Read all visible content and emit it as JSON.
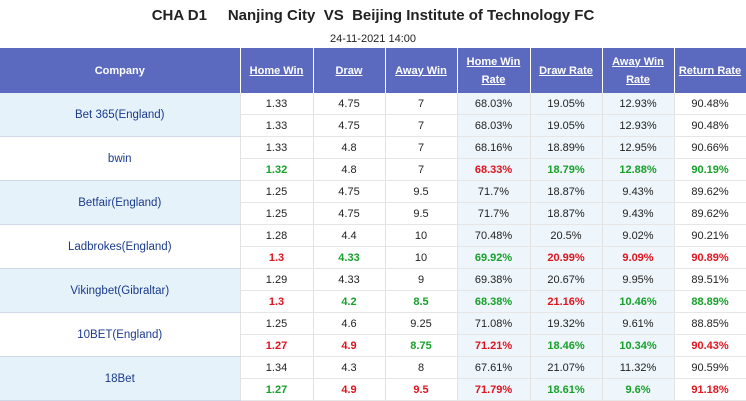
{
  "header": {
    "league": "CHA D1",
    "home_team": "Nanjing City",
    "vs": "VS",
    "away_team": "Beijing Institute of Technology FC",
    "date": "24-11-2021 14:00"
  },
  "columns": [
    "Company",
    "Home Win",
    "Draw",
    "Away Win",
    "Home Win Rate",
    "Draw Rate",
    "Away Win Rate",
    "Return Rate"
  ],
  "companies": [
    {
      "name": "Bet 365(England)",
      "rows": [
        {
          "cells": [
            "1.33",
            "4.75",
            "7",
            "68.03%",
            "19.05%",
            "12.93%",
            "90.48%"
          ],
          "colors": [
            "",
            "",
            "",
            "",
            "",
            "",
            ""
          ]
        },
        {
          "cells": [
            "1.33",
            "4.75",
            "7",
            "68.03%",
            "19.05%",
            "12.93%",
            "90.48%"
          ],
          "colors": [
            "",
            "",
            "",
            "",
            "",
            "",
            ""
          ]
        }
      ]
    },
    {
      "name": "bwin",
      "rows": [
        {
          "cells": [
            "1.33",
            "4.8",
            "7",
            "68.16%",
            "18.89%",
            "12.95%",
            "90.66%"
          ],
          "colors": [
            "",
            "",
            "",
            "",
            "",
            "",
            ""
          ]
        },
        {
          "cells": [
            "1.32",
            "4.8",
            "7",
            "68.33%",
            "18.79%",
            "12.88%",
            "90.19%"
          ],
          "colors": [
            "green",
            "",
            "",
            "red",
            "green",
            "green",
            "green"
          ]
        }
      ]
    },
    {
      "name": "Betfair(England)",
      "rows": [
        {
          "cells": [
            "1.25",
            "4.75",
            "9.5",
            "71.7%",
            "18.87%",
            "9.43%",
            "89.62%"
          ],
          "colors": [
            "",
            "",
            "",
            "",
            "",
            "",
            ""
          ]
        },
        {
          "cells": [
            "1.25",
            "4.75",
            "9.5",
            "71.7%",
            "18.87%",
            "9.43%",
            "89.62%"
          ],
          "colors": [
            "",
            "",
            "",
            "",
            "",
            "",
            ""
          ]
        }
      ]
    },
    {
      "name": "Ladbrokes(England)",
      "rows": [
        {
          "cells": [
            "1.28",
            "4.4",
            "10",
            "70.48%",
            "20.5%",
            "9.02%",
            "90.21%"
          ],
          "colors": [
            "",
            "",
            "",
            "",
            "",
            "",
            ""
          ]
        },
        {
          "cells": [
            "1.3",
            "4.33",
            "10",
            "69.92%",
            "20.99%",
            "9.09%",
            "90.89%"
          ],
          "colors": [
            "red",
            "green",
            "",
            "green",
            "red",
            "red",
            "red"
          ]
        }
      ]
    },
    {
      "name": "Vikingbet(Gibraltar)",
      "rows": [
        {
          "cells": [
            "1.29",
            "4.33",
            "9",
            "69.38%",
            "20.67%",
            "9.95%",
            "89.51%"
          ],
          "colors": [
            "",
            "",
            "",
            "",
            "",
            "",
            ""
          ]
        },
        {
          "cells": [
            "1.3",
            "4.2",
            "8.5",
            "68.38%",
            "21.16%",
            "10.46%",
            "88.89%"
          ],
          "colors": [
            "red",
            "green",
            "green",
            "green",
            "red",
            "green",
            "green"
          ]
        }
      ]
    },
    {
      "name": "10BET(England)",
      "rows": [
        {
          "cells": [
            "1.25",
            "4.6",
            "9.25",
            "71.08%",
            "19.32%",
            "9.61%",
            "88.85%"
          ],
          "colors": [
            "",
            "",
            "",
            "",
            "",
            "",
            ""
          ]
        },
        {
          "cells": [
            "1.27",
            "4.9",
            "8.75",
            "71.21%",
            "18.46%",
            "10.34%",
            "90.43%"
          ],
          "colors": [
            "red",
            "red",
            "green",
            "red",
            "green",
            "green",
            "red"
          ]
        }
      ]
    },
    {
      "name": "18Bet",
      "rows": [
        {
          "cells": [
            "1.34",
            "4.3",
            "8",
            "67.61%",
            "21.07%",
            "11.32%",
            "90.59%"
          ],
          "colors": [
            "",
            "",
            "",
            "",
            "",
            "",
            ""
          ]
        },
        {
          "cells": [
            "1.27",
            "4.9",
            "9.5",
            "71.79%",
            "18.61%",
            "9.6%",
            "91.18%"
          ],
          "colors": [
            "green",
            "red",
            "red",
            "red",
            "green",
            "green",
            "red"
          ]
        }
      ]
    }
  ]
}
